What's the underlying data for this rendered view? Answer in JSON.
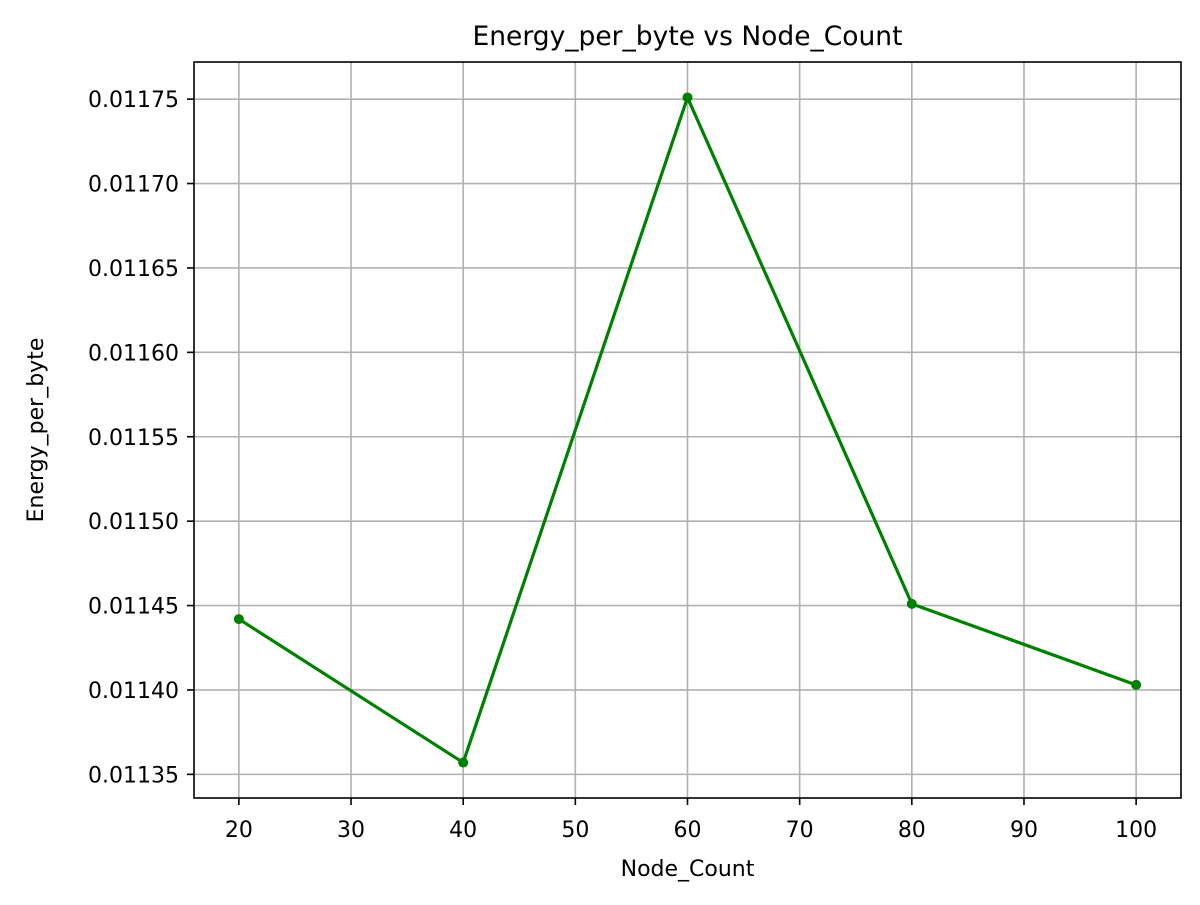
{
  "chart_data": {
    "type": "line",
    "title": "Energy_per_byte vs Node_Count",
    "xlabel": "Node_Count",
    "ylabel": "Energy_per_byte",
    "xlim": [
      16,
      104
    ],
    "ylim": [
      0.011336,
      0.011772
    ],
    "xticks": [
      20,
      30,
      40,
      50,
      60,
      70,
      80,
      90,
      100
    ],
    "xtick_labels": [
      "20",
      "30",
      "40",
      "50",
      "60",
      "70",
      "80",
      "90",
      "100"
    ],
    "yticks": [
      0.01135,
      0.0114,
      0.01145,
      0.0115,
      0.01155,
      0.0116,
      0.01165,
      0.0117,
      0.01175
    ],
    "ytick_labels": [
      "0.01135",
      "0.01140",
      "0.01145",
      "0.01150",
      "0.01155",
      "0.01160",
      "0.01165",
      "0.01170",
      "0.01175"
    ],
    "grid": true,
    "series": [
      {
        "color": "#008000",
        "marker": "circle",
        "x": [
          20,
          40,
          60,
          80,
          100
        ],
        "y": [
          0.011442,
          0.011357,
          0.011751,
          0.011451,
          0.011403
        ]
      }
    ]
  }
}
